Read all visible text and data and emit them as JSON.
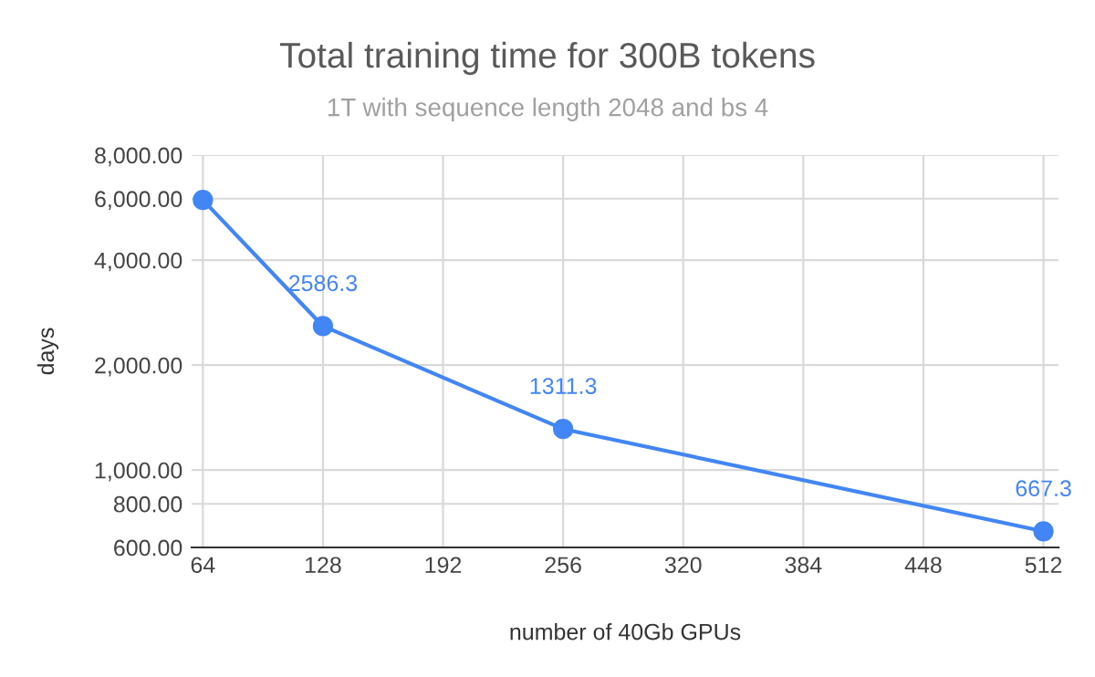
{
  "chart_data": {
    "type": "line",
    "title": "Total training time for 300B tokens",
    "subtitle": "1T with sequence length 2048 and bs 4",
    "xlabel": "number of 40Gb GPUs",
    "ylabel": "days",
    "x": [
      64,
      128,
      256,
      512
    ],
    "series": [
      {
        "color": "#4285f4",
        "values": [
          5950,
          2586.3,
          1311.3,
          667.3
        ],
        "value_labels": [
          null,
          "2586.3",
          "1311.3",
          "667.3"
        ]
      }
    ],
    "log": true,
    "xlim": [
      58,
      520
    ],
    "xticks": [
      64,
      128,
      192,
      256,
      320,
      384,
      448,
      512
    ],
    "ylim": [
      600,
      8000
    ],
    "yticks": [
      {
        "value": 600,
        "label": "600.00"
      },
      {
        "value": 800,
        "label": "800.00"
      },
      {
        "value": 1000,
        "label": "1,000.00"
      },
      {
        "value": 2000,
        "label": "2,000.00"
      },
      {
        "value": 4000,
        "label": "4,000.00"
      },
      {
        "value": 6000,
        "label": "6,000.00"
      },
      {
        "value": 8000,
        "label": "8,000.00"
      }
    ],
    "grid": true,
    "marker": "circle",
    "line_style": "solid"
  }
}
